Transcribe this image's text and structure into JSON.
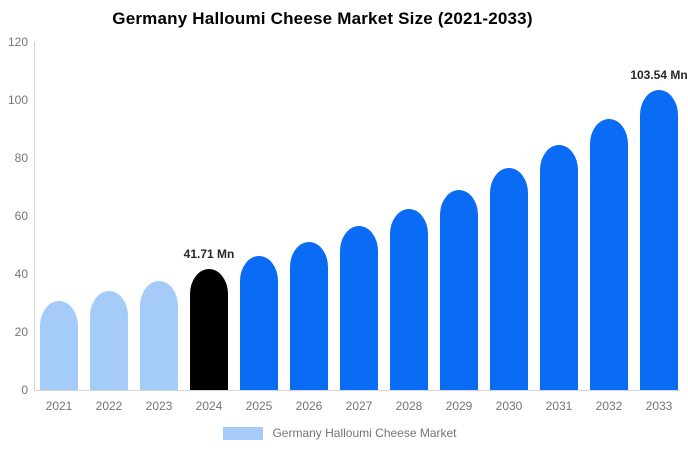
{
  "title": "Germany Halloumi Cheese Market Size (2021-2033)",
  "legend": {
    "label": "Germany Halloumi Cheese Market",
    "swatch_color": "#A5CCF8"
  },
  "colors": {
    "historical_bar": "#A5CCF8",
    "base_year_bar": "#000000",
    "forecast_bar": "#0A6BF5",
    "axis_line": "#D6D6D6",
    "axis_label": "#757575",
    "data_label": "#262626",
    "title": "#000000",
    "background": "#FFFFFF"
  },
  "chart_data": {
    "type": "bar",
    "title": "Germany Halloumi Cheese Market Size (2021-2033)",
    "unit": "Mn",
    "categories": [
      "2021",
      "2022",
      "2023",
      "2024",
      "2025",
      "2026",
      "2027",
      "2028",
      "2029",
      "2030",
      "2031",
      "2032",
      "2033"
    ],
    "values": [
      30.79,
      34.06,
      37.68,
      41.71,
      46.14,
      51.04,
      56.47,
      62.47,
      69.11,
      76.45,
      84.58,
      93.57,
      103.54
    ],
    "bar_colors": [
      "#A5CCF8",
      "#A5CCF8",
      "#A5CCF8",
      "#000000",
      "#0A6BF5",
      "#0A6BF5",
      "#0A6BF5",
      "#0A6BF5",
      "#0A6BF5",
      "#0A6BF5",
      "#0A6BF5",
      "#0A6BF5",
      "#0A6BF5"
    ],
    "data_labels": [
      {
        "category": "2024",
        "text": "41.71 Mn"
      },
      {
        "category": "2033",
        "text": "103.54 Mn"
      }
    ],
    "xlabel": "",
    "ylabel": "",
    "ylim": [
      0,
      120
    ],
    "yticks": [
      0,
      20,
      40,
      60,
      80,
      100,
      120
    ],
    "grid": false,
    "legend_position": "bottom"
  }
}
